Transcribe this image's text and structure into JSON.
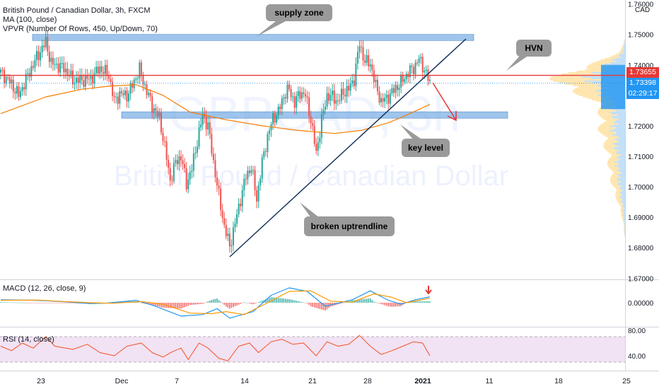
{
  "header": {
    "title": "British Pound / Canadian Dollar, 3h, FXCM",
    "indicator_ma": "MA (100, close)",
    "indicator_vpvr": "VPVR (Number Of Rows, 450, Up/Down, 70)",
    "currency": "CAD"
  },
  "watermark": {
    "symbol": "GBPCAD, 3h",
    "name": "British Pound / Canadian Dollar"
  },
  "annotations": {
    "supply_zone": "supply zone",
    "hvn": "HVN",
    "key_level": "key level",
    "broken_uptrendline": "broken uptrendline"
  },
  "price_labels": {
    "red_line": "1.73655",
    "last_price": "1.73398",
    "countdown": "02:29:17"
  },
  "panes": {
    "macd_label": "MACD (12, 26, close, 9)",
    "rsi_label": "RSI (14, close)"
  },
  "colors": {
    "up": "#26a69a",
    "down": "#ef5350",
    "ma": "#f57c00",
    "zone": "#7fb2e5",
    "hvn_line": "#e53935",
    "trendline": "#0d2b5a",
    "macd_line": "#2196f3",
    "signal_line": "#ff9800",
    "rsi_line": "#f4511e",
    "vpvr_up": "#ffc64d",
    "vpvr_down": "#5aa8f0",
    "blue_box": "#2196f3"
  },
  "chart_data": [
    {
      "type": "candlestick",
      "title": "British Pound / Canadian Dollar, 3h, FXCM",
      "ylim": [
        1.6696,
        1.7613
      ],
      "y_ticks": [
        "1.76000",
        "1.75000",
        "1.74000",
        "1.73000",
        "1.72000",
        "1.71000",
        "1.70000",
        "1.69000",
        "1.68000",
        "1.67000"
      ],
      "x_ticks": [
        "23",
        "Dec",
        "7",
        "14",
        "21",
        "28",
        "2021",
        "11",
        "18",
        "25"
      ],
      "price_path": [
        [
          0,
          1.7375
        ],
        [
          5,
          1.7345
        ],
        [
          10,
          1.73
        ],
        [
          15,
          1.7365
        ],
        [
          20,
          1.7425
        ],
        [
          25,
          1.7475
        ],
        [
          28,
          1.7405
        ],
        [
          35,
          1.739
        ],
        [
          40,
          1.735
        ],
        [
          45,
          1.735
        ],
        [
          50,
          1.7355
        ],
        [
          55,
          1.739
        ],
        [
          60,
          1.7365
        ],
        [
          63,
          1.728
        ],
        [
          66,
          1.7305
        ],
        [
          70,
          1.73
        ],
        [
          72,
          1.732
        ],
        [
          77,
          1.7385
        ],
        [
          80,
          1.733
        ],
        [
          84,
          1.7265
        ],
        [
          88,
          1.7225
        ],
        [
          91,
          1.713
        ],
        [
          94,
          1.702
        ],
        [
          97,
          1.708
        ],
        [
          100,
          1.71
        ],
        [
          103,
          1.701
        ],
        [
          106,
          1.706
        ],
        [
          109,
          1.715
        ],
        [
          112,
          1.7235
        ],
        [
          115,
          1.72
        ],
        [
          118,
          1.708
        ],
        [
          121,
          1.697
        ],
        [
          124,
          1.687
        ],
        [
          127,
          1.6805
        ],
        [
          130,
          1.688
        ],
        [
          133,
          1.696
        ],
        [
          136,
          1.7035
        ],
        [
          139,
          1.7065
        ],
        [
          142,
          1.696
        ],
        [
          145,
          1.708
        ],
        [
          148,
          1.7165
        ],
        [
          151,
          1.7225
        ],
        [
          154,
          1.7245
        ],
        [
          157,
          1.73
        ],
        [
          160,
          1.732
        ],
        [
          163,
          1.7275
        ],
        [
          166,
          1.731
        ],
        [
          169,
          1.73
        ],
        [
          172,
          1.722
        ],
        [
          175,
          1.711
        ],
        [
          178,
          1.722
        ],
        [
          181,
          1.73
        ],
        [
          184,
          1.7295
        ],
        [
          187,
          1.728
        ],
        [
          190,
          1.731
        ],
        [
          193,
          1.732
        ],
        [
          196,
          1.7355
        ],
        [
          199,
          1.747
        ],
        [
          202,
          1.741
        ],
        [
          205,
          1.7405
        ],
        [
          208,
          1.733
        ],
        [
          211,
          1.728
        ],
        [
          214,
          1.729
        ],
        [
          217,
          1.731
        ],
        [
          220,
          1.733
        ],
        [
          223,
          1.735
        ],
        [
          226,
          1.7375
        ],
        [
          229,
          1.739
        ],
        [
          232,
          1.742
        ],
        [
          235,
          1.7385
        ],
        [
          238,
          1.734
        ]
      ],
      "series": [
        {
          "name": "MA (100, close)",
          "path": [
            [
              0,
              1.724
            ],
            [
              25,
              1.7295
            ],
            [
              45,
              1.732
            ],
            [
              60,
              1.733
            ],
            [
              75,
              1.7335
            ],
            [
              90,
              1.73
            ],
            [
              105,
              1.7245
            ],
            [
              125,
              1.722
            ],
            [
              145,
              1.72
            ],
            [
              165,
              1.7185
            ],
            [
              185,
              1.7175
            ],
            [
              200,
              1.7185
            ],
            [
              215,
              1.721
            ],
            [
              225,
              1.7235
            ],
            [
              238,
              1.727
            ]
          ]
        }
      ],
      "levels": {
        "supply_zone": [
          1.748,
          1.75
        ],
        "key_level": [
          1.7225,
          1.7246
        ],
        "hvn_line": 1.73655,
        "last_price": 1.73398
      },
      "uptrendline": [
        [
          127,
          1.677
        ],
        [
          258,
          1.7485
        ]
      ]
    },
    {
      "type": "line",
      "title": "MACD (12, 26, close, 9)",
      "y_ticks": [
        "0.00000"
      ],
      "series": [
        {
          "name": "MACD",
          "path": [
            [
              0,
              0.001
            ],
            [
              20,
              0.0008
            ],
            [
              35,
              0.0003
            ],
            [
              50,
              -0.0003
            ],
            [
              60,
              -0.0001
            ],
            [
              75,
              0.0008
            ],
            [
              85,
              -0.001
            ],
            [
              100,
              -0.0045
            ],
            [
              112,
              -0.004
            ],
            [
              120,
              -0.002
            ],
            [
              127,
              -0.0052
            ],
            [
              140,
              -0.003
            ],
            [
              150,
              0.0025
            ],
            [
              160,
              0.005
            ],
            [
              170,
              0.0038
            ],
            [
              180,
              -0.0012
            ],
            [
              195,
              0.001
            ],
            [
              205,
              0.004
            ],
            [
              215,
              0.0008
            ],
            [
              222,
              -0.0005
            ],
            [
              230,
              0.001
            ],
            [
              238,
              0.002
            ]
          ]
        },
        {
          "name": "Signal",
          "path": [
            [
              0,
              0.0008
            ],
            [
              20,
              0.0009
            ],
            [
              35,
              0.0004
            ],
            [
              50,
              0.0
            ],
            [
              62,
              -0.0002
            ],
            [
              78,
              0.0004
            ],
            [
              90,
              -0.0005
            ],
            [
              105,
              -0.0035
            ],
            [
              117,
              -0.0037
            ],
            [
              125,
              -0.003
            ],
            [
              135,
              -0.004
            ],
            [
              148,
              0.0
            ],
            [
              160,
              0.0038
            ],
            [
              172,
              0.004
            ],
            [
              183,
              0.0005
            ],
            [
              195,
              0.0002
            ],
            [
              207,
              0.003
            ],
            [
              217,
              0.0018
            ],
            [
              225,
              0.0
            ],
            [
              232,
              0.0008
            ],
            [
              238,
              0.0015
            ]
          ]
        }
      ],
      "marker": "down-arrow"
    },
    {
      "type": "line",
      "title": "RSI (14, close)",
      "y_ticks": [
        "80.00",
        "40.00"
      ],
      "band": [
        30,
        70
      ],
      "series": [
        {
          "name": "RSI",
          "path": [
            [
              0,
              55
            ],
            [
              6,
              48
            ],
            [
              12,
              60
            ],
            [
              18,
              52
            ],
            [
              25,
              70
            ],
            [
              30,
              55
            ],
            [
              40,
              50
            ],
            [
              48,
              58
            ],
            [
              55,
              45
            ],
            [
              63,
              40
            ],
            [
              70,
              55
            ],
            [
              78,
              60
            ],
            [
              84,
              45
            ],
            [
              90,
              38
            ],
            [
              95,
              46
            ],
            [
              100,
              52
            ],
            [
              104,
              34
            ],
            [
              110,
              60
            ],
            [
              115,
              52
            ],
            [
              121,
              36
            ],
            [
              126,
              32
            ],
            [
              132,
              55
            ],
            [
              138,
              60
            ],
            [
              143,
              45
            ],
            [
              150,
              62
            ],
            [
              156,
              66
            ],
            [
              162,
              58
            ],
            [
              168,
              60
            ],
            [
              175,
              40
            ],
            [
              181,
              62
            ],
            [
              187,
              55
            ],
            [
              193,
              58
            ],
            [
              199,
              72
            ],
            [
              205,
              55
            ],
            [
              211,
              42
            ],
            [
              217,
              48
            ],
            [
              223,
              55
            ],
            [
              229,
              62
            ],
            [
              234,
              60
            ],
            [
              238,
              40
            ]
          ]
        }
      ]
    }
  ]
}
